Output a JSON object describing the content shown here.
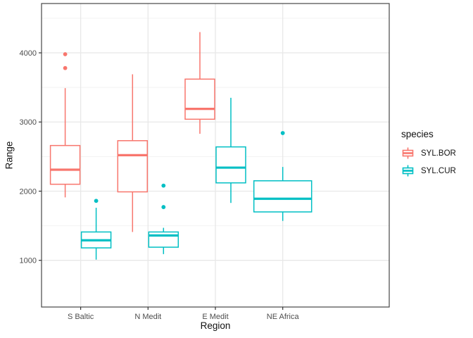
{
  "chart_data": {
    "type": "boxplot",
    "title": "",
    "xlabel": "Region",
    "ylabel": "Range",
    "categories": [
      "S Baltic",
      "N Medit",
      "E Medit",
      "NE Africa"
    ],
    "y_ticks": [
      1000,
      2000,
      3000,
      4000
    ],
    "y_minor_ticks": [
      1500,
      2500,
      3500,
      4500
    ],
    "ylim": [
      325,
      4713
    ],
    "grid": "on",
    "legend_position": "right",
    "legend": {
      "title": "species",
      "entries": [
        {
          "label": "SYL.BOR",
          "color": "#F8766D"
        },
        {
          "label": "SYL.CUR",
          "color": "#00BFC4"
        }
      ]
    },
    "series": [
      {
        "name": "SYL.BOR",
        "color": "#F8766D",
        "boxes": [
          {
            "category": "S Baltic",
            "low": 1910,
            "q1": 2100,
            "median": 2310,
            "q3": 2660,
            "high": 3490,
            "outliers": [
              3780,
              3980
            ]
          },
          {
            "category": "N Medit",
            "low": 1410,
            "q1": 1990,
            "median": 2520,
            "q3": 2730,
            "high": 3690,
            "outliers": []
          },
          {
            "category": "E Medit",
            "low": 2830,
            "q1": 3040,
            "median": 3190,
            "q3": 3620,
            "high": 4300,
            "outliers": []
          }
        ]
      },
      {
        "name": "SYL.CUR",
        "color": "#00BFC4",
        "boxes": [
          {
            "category": "S Baltic",
            "low": 1010,
            "q1": 1180,
            "median": 1290,
            "q3": 1410,
            "high": 1760,
            "outliers": [
              1860
            ]
          },
          {
            "category": "N Medit",
            "low": 1090,
            "q1": 1190,
            "median": 1360,
            "q3": 1410,
            "high": 1470,
            "outliers": [
              1770,
              2080
            ]
          },
          {
            "category": "E Medit",
            "low": 1830,
            "q1": 2120,
            "median": 2340,
            "q3": 2640,
            "high": 3350,
            "outliers": []
          },
          {
            "category": "NE Africa",
            "low": 1570,
            "q1": 1700,
            "median": 1890,
            "q3": 2150,
            "high": 2350,
            "outliers": [
              2840
            ]
          }
        ]
      }
    ],
    "style": {
      "panel_border": "#474747",
      "grid_major": "#e8e8e8",
      "grid_minor": "#f2f2f2",
      "tick_color": "#333333",
      "tick_label_color": "#4d4d4d"
    }
  }
}
